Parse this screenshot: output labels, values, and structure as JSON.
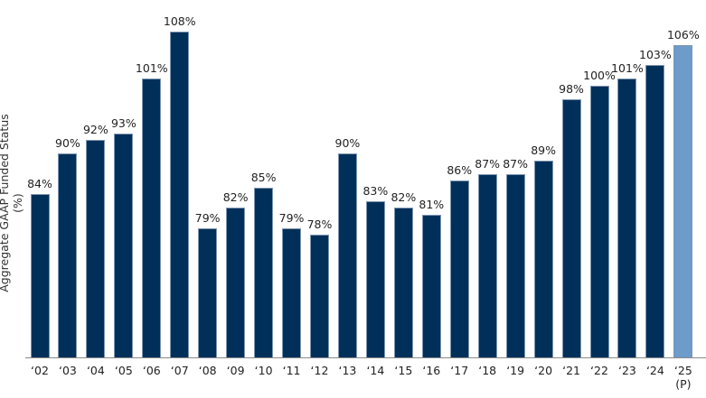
{
  "chart_data": {
    "type": "bar",
    "title": "",
    "xlabel": "",
    "ylabel": "Aggregate GAAP Funded Status (%)",
    "categories": [
      "‘02",
      "‘03",
      "‘04",
      "‘05",
      "‘06",
      "‘07",
      "‘08",
      "‘09",
      "‘10",
      "‘11",
      "‘12",
      "‘13",
      "‘14",
      "‘15",
      "‘16",
      "‘17",
      "‘18",
      "‘19",
      "‘20",
      "‘21",
      "‘22",
      "‘23",
      "‘24",
      "‘25 (P)"
    ],
    "values": [
      84,
      90,
      92,
      93,
      101,
      108,
      79,
      82,
      85,
      79,
      78,
      90,
      83,
      82,
      81,
      86,
      87,
      87,
      89,
      98,
      100,
      101,
      103,
      106
    ],
    "labels": [
      "84%",
      "90%",
      "92%",
      "93%",
      "101%",
      "108%",
      "79%",
      "82%",
      "85%",
      "79%",
      "78%",
      "90%",
      "83%",
      "82%",
      "81%",
      "86%",
      "87%",
      "87%",
      "89%",
      "98%",
      "100%",
      "101%",
      "103%",
      "106%"
    ],
    "projected_index": 23,
    "colors": {
      "actual": "#00305a",
      "projected": "#6d9bca"
    },
    "ylim": [
      60,
      110
    ],
    "grid": false,
    "legend": null
  }
}
